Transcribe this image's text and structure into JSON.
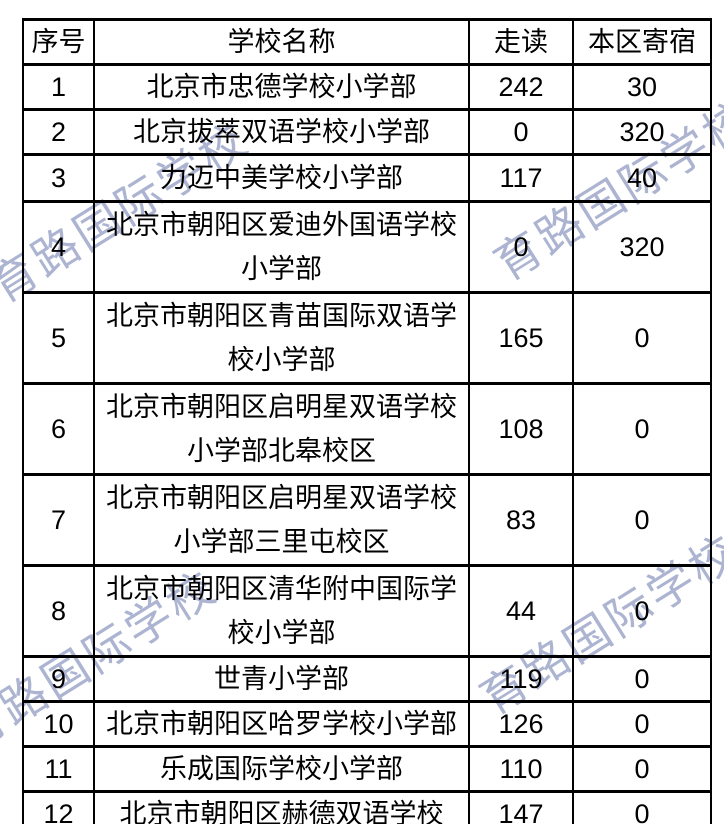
{
  "page": {
    "background_color": "#ffffff",
    "text_color": "#000000",
    "border_color": "#000000"
  },
  "watermark": {
    "text": "育路国际学校",
    "color": "#9ea7c9"
  },
  "table": {
    "headers": [
      "序号",
      "学校名称",
      "走读",
      "本区寄宿"
    ],
    "rows": [
      [
        "1",
        "北京市忠德学校小学部",
        "242",
        "30"
      ],
      [
        "2",
        "北京拔萃双语学校小学部",
        "0",
        "320"
      ],
      [
        "3",
        "力迈中美学校小学部",
        "117",
        "40"
      ],
      [
        "4",
        "北京市朝阳区爱迪外国语学校小学部",
        "0",
        "320"
      ],
      [
        "5",
        "北京市朝阳区青苗国际双语学校小学部",
        "165",
        "0"
      ],
      [
        "6",
        "北京市朝阳区启明星双语学校小学部北皋校区",
        "108",
        "0"
      ],
      [
        "7",
        "北京市朝阳区启明星双语学校小学部三里屯校区",
        "83",
        "0"
      ],
      [
        "8",
        "北京市朝阳区清华附中国际学校小学部",
        "44",
        "0"
      ],
      [
        "9",
        "世青小学部",
        "119",
        "0"
      ],
      [
        "10",
        "北京市朝阳区哈罗学校小学部",
        "126",
        "0"
      ],
      [
        "11",
        "乐成国际学校小学部",
        "110",
        "0"
      ],
      [
        "12",
        "北京市朝阳区赫德双语学校",
        "147",
        "0"
      ]
    ]
  }
}
